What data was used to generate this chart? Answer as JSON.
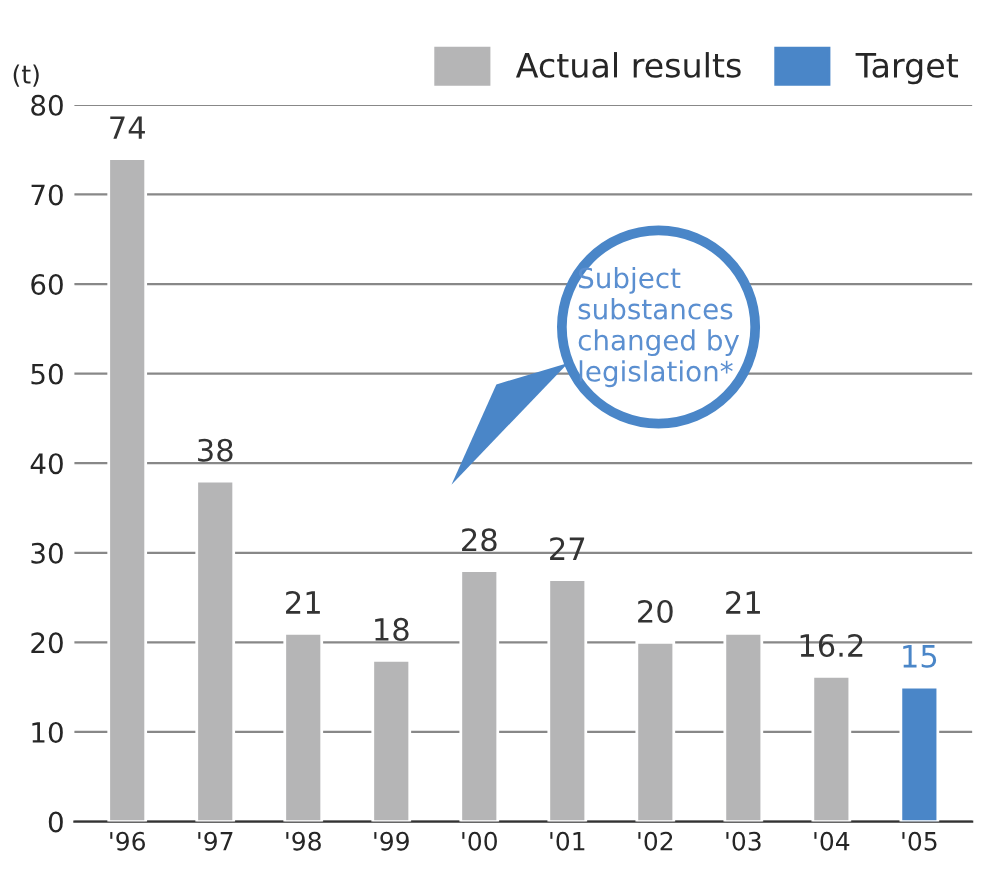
{
  "chart_data": {
    "type": "bar",
    "ylabel": "(t)",
    "categories": [
      "'96",
      "'97",
      "'98",
      "'99",
      "'00",
      "'01",
      "'02",
      "'03",
      "'04",
      "'05"
    ],
    "series": [
      {
        "name": "Actual results",
        "color": "#b5b5b6",
        "values": [
          74,
          38,
          21,
          18,
          28,
          27,
          20,
          21,
          16.2,
          null
        ]
      },
      {
        "name": "Target",
        "color": "#4a86c8",
        "values": [
          null,
          null,
          null,
          null,
          null,
          null,
          null,
          null,
          null,
          15
        ]
      }
    ],
    "ylim": [
      0,
      80
    ],
    "yticks": [
      0,
      10,
      20,
      30,
      40,
      50,
      60,
      70,
      80
    ],
    "grid": "y",
    "legend": "top right",
    "data_labels": true,
    "annotations": [
      "Subject\nsubstances\nchanged by\nlegislation*"
    ]
  }
}
